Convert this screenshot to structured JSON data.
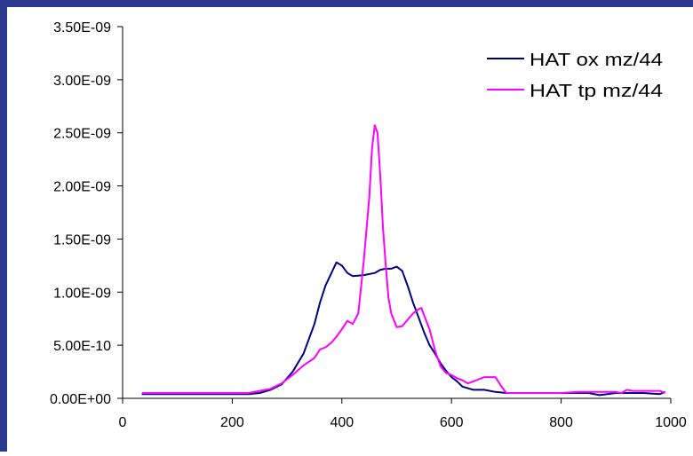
{
  "colors": {
    "frame": "#2b3a8f",
    "background": "#ffffff",
    "axis": "#000000",
    "ox": "#000080",
    "tp": "#ff00ff"
  },
  "chart_data": {
    "type": "line",
    "title": "",
    "xlabel": "",
    "ylabel": "",
    "xlim": [
      0,
      1000
    ],
    "ylim": [
      0,
      3.5e-09
    ],
    "x_ticks": [
      0,
      200,
      400,
      600,
      800,
      1000
    ],
    "x_tick_labels": [
      "0",
      "200",
      "400",
      "600",
      "800",
      "1000"
    ],
    "y_ticks": [
      0,
      5e-10,
      1e-09,
      1.5e-09,
      2e-09,
      2.5e-09,
      3e-09,
      3.5e-09
    ],
    "y_tick_labels": [
      "0.00E+00",
      "5.00E-10",
      "1.00E-09",
      "1.50E-09",
      "2.00E-09",
      "2.50E-09",
      "3.00E-09",
      "3.50E-09"
    ],
    "grid": false,
    "legend_position": "top-right",
    "series": [
      {
        "name": "HAT ox mz/44",
        "x": [
          35,
          100,
          150,
          200,
          230,
          250,
          270,
          290,
          310,
          330,
          350,
          360,
          370,
          380,
          390,
          400,
          410,
          420,
          440,
          460,
          470,
          480,
          490,
          500,
          510,
          520,
          530,
          540,
          550,
          560,
          570,
          580,
          590,
          600,
          610,
          620,
          640,
          660,
          680,
          700,
          750,
          800,
          850,
          870,
          900,
          950,
          980,
          990
        ],
        "y": [
          4e-11,
          4e-11,
          4e-11,
          4e-11,
          4e-11,
          5e-11,
          8e-11,
          1.3e-10,
          2.5e-10,
          4.2e-10,
          7e-10,
          9e-10,
          1.06e-09,
          1.17e-09,
          1.28e-09,
          1.25e-09,
          1.18e-09,
          1.15e-09,
          1.16e-09,
          1.18e-09,
          1.21e-09,
          1.22e-09,
          1.22e-09,
          1.24e-09,
          1.2e-09,
          1.06e-09,
          9e-10,
          7.6e-10,
          6.2e-10,
          5e-10,
          4.2e-10,
          3.3e-10,
          2.6e-10,
          2e-10,
          1.6e-10,
          1.1e-10,
          8e-11,
          8e-11,
          6e-11,
          5e-11,
          5e-11,
          5e-11,
          5e-11,
          3e-11,
          5e-11,
          5e-11,
          4e-11,
          6e-11
        ]
      },
      {
        "name": "HAT tp mz/44",
        "x": [
          35,
          100,
          150,
          200,
          230,
          250,
          270,
          290,
          310,
          330,
          350,
          360,
          370,
          380,
          390,
          400,
          410,
          420,
          430,
          440,
          450,
          455,
          460,
          465,
          470,
          475,
          480,
          485,
          490,
          500,
          510,
          520,
          530,
          540,
          545,
          550,
          560,
          570,
          580,
          590,
          600,
          610,
          620,
          630,
          640,
          650,
          660,
          670,
          680,
          690,
          700,
          720,
          750,
          800,
          830,
          850,
          900,
          910,
          920,
          930,
          950,
          980,
          990
        ],
        "y": [
          5e-11,
          5e-11,
          5e-11,
          5e-11,
          5e-11,
          7e-11,
          9e-11,
          1.4e-10,
          2.2e-10,
          3.1e-10,
          3.8e-10,
          4.6e-10,
          4.8e-10,
          5.2e-10,
          5.8e-10,
          6.5e-10,
          7.3e-10,
          7e-10,
          8e-10,
          1.3e-09,
          1.9e-09,
          2.35e-09,
          2.57e-09,
          2.5e-09,
          2.1e-09,
          1.6e-09,
          1.25e-09,
          9.5e-10,
          8e-10,
          6.7e-10,
          6.8e-10,
          7.4e-10,
          8e-10,
          8.4e-10,
          8.5e-10,
          7.8e-10,
          6.5e-10,
          4.5e-10,
          3e-10,
          2.4e-10,
          2.2e-10,
          1.9e-10,
          1.7e-10,
          1.4e-10,
          1.6e-10,
          1.8e-10,
          2e-10,
          2e-10,
          2e-10,
          1.2e-10,
          5e-11,
          5e-11,
          5e-11,
          5e-11,
          6e-11,
          6e-11,
          6e-11,
          5e-11,
          8e-11,
          7e-11,
          7e-11,
          7e-11,
          5e-11
        ]
      }
    ]
  }
}
